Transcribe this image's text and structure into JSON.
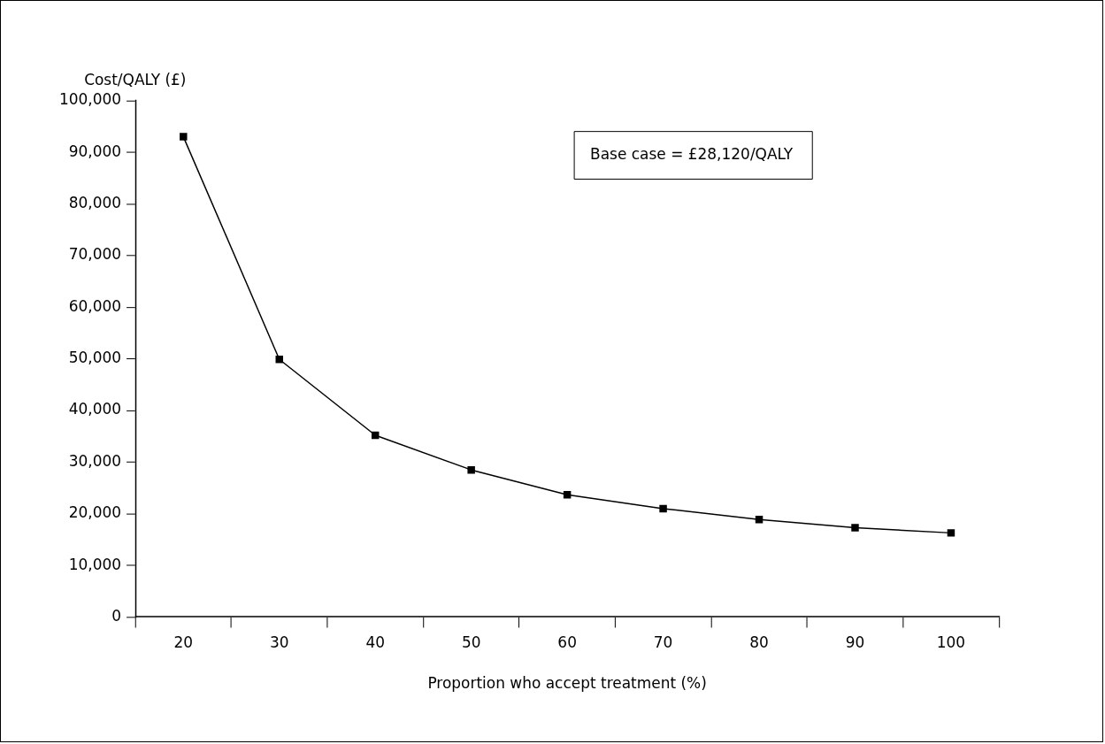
{
  "chart_data": {
    "type": "line",
    "xlabel": "Proportion who accept treatment (%)",
    "ylabel": "Cost/QALY (£)",
    "categories": [
      "20",
      "30",
      "40",
      "50",
      "60",
      "70",
      "80",
      "90",
      "100"
    ],
    "values": [
      93000,
      49900,
      35200,
      28500,
      23700,
      21000,
      18900,
      17300,
      16300
    ],
    "color": "#000000",
    "marker": "square",
    "line_style": "solid",
    "ylim": [
      0,
      100000
    ],
    "yticks": [
      {
        "value": 0,
        "label": "0"
      },
      {
        "value": 10000,
        "label": "10,000"
      },
      {
        "value": 20000,
        "label": "20,000"
      },
      {
        "value": 30000,
        "label": "30,000"
      },
      {
        "value": 40000,
        "label": "40,000"
      },
      {
        "value": 50000,
        "label": "50,000"
      },
      {
        "value": 60000,
        "label": "60,000"
      },
      {
        "value": 70000,
        "label": "70,000"
      },
      {
        "value": 80000,
        "label": "80,000"
      },
      {
        "value": 90000,
        "label": "90,000"
      },
      {
        "value": 100000,
        "label": "100,000"
      }
    ],
    "annotations": [
      "Base case = £28,120/QALY"
    ]
  }
}
